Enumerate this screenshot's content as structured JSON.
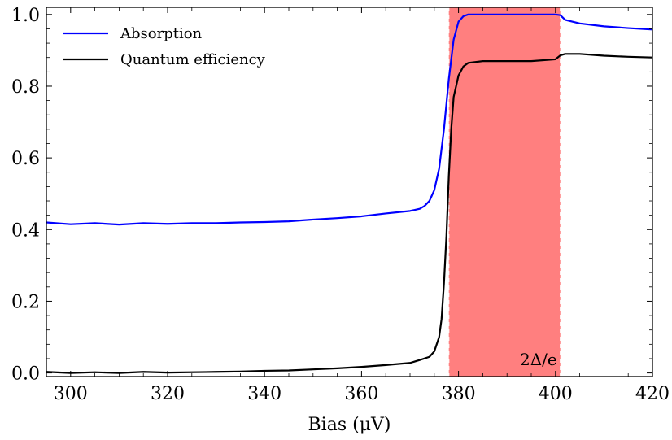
{
  "chart_data": {
    "type": "line",
    "title": "",
    "xlabel": "Bias (μV)",
    "ylabel": "",
    "xlim": [
      295,
      420
    ],
    "ylim": [
      -0.01,
      1.02
    ],
    "xticks": [
      300,
      320,
      340,
      360,
      380,
      400,
      420
    ],
    "xtick_labels": [
      "300",
      "320",
      "340",
      "360",
      "380",
      "400",
      "420"
    ],
    "yticks": [
      0.0,
      0.2,
      0.4,
      0.6,
      0.8,
      1.0
    ],
    "ytick_labels": [
      "0.0",
      "0.2",
      "0.4",
      "0.6",
      "0.8",
      "1.0"
    ],
    "grid": false,
    "legend_position": "top-left",
    "shaded_region": {
      "x_start": 378,
      "x_end": 401,
      "color": "#ff7f7f",
      "label": "2Δ/e"
    },
    "series": [
      {
        "name": "Absorption",
        "color": "#0000ff",
        "points": [
          [
            295,
            0.42
          ],
          [
            300,
            0.415
          ],
          [
            305,
            0.418
          ],
          [
            310,
            0.414
          ],
          [
            315,
            0.418
          ],
          [
            320,
            0.416
          ],
          [
            325,
            0.418
          ],
          [
            330,
            0.418
          ],
          [
            335,
            0.42
          ],
          [
            340,
            0.421
          ],
          [
            345,
            0.423
          ],
          [
            350,
            0.428
          ],
          [
            355,
            0.432
          ],
          [
            360,
            0.437
          ],
          [
            365,
            0.445
          ],
          [
            370,
            0.452
          ],
          [
            372,
            0.458
          ],
          [
            373,
            0.466
          ],
          [
            374,
            0.48
          ],
          [
            375,
            0.51
          ],
          [
            376,
            0.57
          ],
          [
            377,
            0.68
          ],
          [
            378,
            0.82
          ],
          [
            379,
            0.93
          ],
          [
            380,
            0.98
          ],
          [
            381,
            0.995
          ],
          [
            382,
            1.0
          ],
          [
            385,
            1.0
          ],
          [
            390,
            1.0
          ],
          [
            395,
            1.0
          ],
          [
            400,
            1.0
          ],
          [
            401,
            0.998
          ],
          [
            402,
            0.985
          ],
          [
            405,
            0.975
          ],
          [
            410,
            0.967
          ],
          [
            415,
            0.962
          ],
          [
            420,
            0.958
          ]
        ]
      },
      {
        "name": "Quantum efficiency",
        "color": "#000000",
        "points": [
          [
            295,
            0.003
          ],
          [
            300,
            0.0
          ],
          [
            305,
            0.002
          ],
          [
            310,
            0.0
          ],
          [
            315,
            0.003
          ],
          [
            320,
            0.001
          ],
          [
            325,
            0.002
          ],
          [
            330,
            0.003
          ],
          [
            335,
            0.004
          ],
          [
            340,
            0.006
          ],
          [
            345,
            0.007
          ],
          [
            350,
            0.01
          ],
          [
            355,
            0.013
          ],
          [
            360,
            0.017
          ],
          [
            365,
            0.022
          ],
          [
            370,
            0.028
          ],
          [
            372,
            0.036
          ],
          [
            374,
            0.045
          ],
          [
            375,
            0.06
          ],
          [
            376,
            0.1
          ],
          [
            376.5,
            0.15
          ],
          [
            377,
            0.25
          ],
          [
            377.5,
            0.38
          ],
          [
            378,
            0.55
          ],
          [
            378.5,
            0.68
          ],
          [
            379,
            0.77
          ],
          [
            380,
            0.83
          ],
          [
            381,
            0.855
          ],
          [
            382,
            0.865
          ],
          [
            385,
            0.87
          ],
          [
            390,
            0.87
          ],
          [
            395,
            0.87
          ],
          [
            400,
            0.875
          ],
          [
            401,
            0.886
          ],
          [
            402,
            0.89
          ],
          [
            405,
            0.89
          ],
          [
            410,
            0.885
          ],
          [
            415,
            0.882
          ],
          [
            420,
            0.88
          ]
        ]
      }
    ]
  }
}
